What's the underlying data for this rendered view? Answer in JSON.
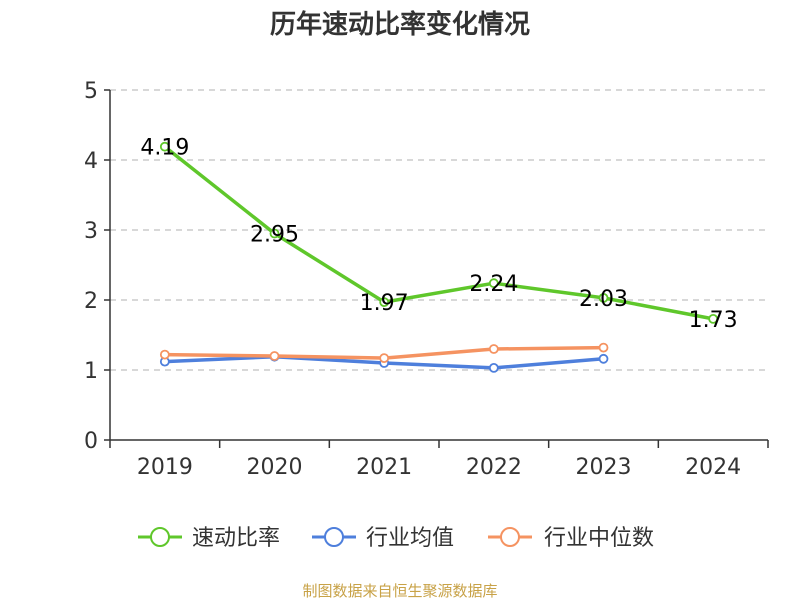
{
  "chart_data": {
    "type": "line",
    "title": "历年速动比率变化情况",
    "categories": [
      "2019",
      "2020",
      "2021",
      "2022",
      "2023",
      "2024"
    ],
    "ylim": [
      0,
      5
    ],
    "yticks": [
      0,
      1,
      2,
      3,
      4,
      5
    ],
    "grid": true,
    "legend_position": "bottom",
    "series": [
      {
        "name": "速动比率",
        "color": "#5fc72b",
        "values": [
          4.19,
          2.95,
          1.97,
          2.24,
          2.03,
          1.73
        ],
        "labels": [
          "4.19",
          "2.95",
          "1.97",
          "2.24",
          "2.03",
          "1.73"
        ]
      },
      {
        "name": "行业均值",
        "color": "#4e7fdc",
        "values": [
          1.12,
          1.19,
          1.1,
          1.03,
          1.16,
          null
        ]
      },
      {
        "name": "行业中位数",
        "color": "#f59361",
        "values": [
          1.22,
          1.2,
          1.17,
          1.3,
          1.32,
          null
        ]
      }
    ]
  },
  "footer": {
    "source": "制图数据来自恒生聚源数据库"
  }
}
